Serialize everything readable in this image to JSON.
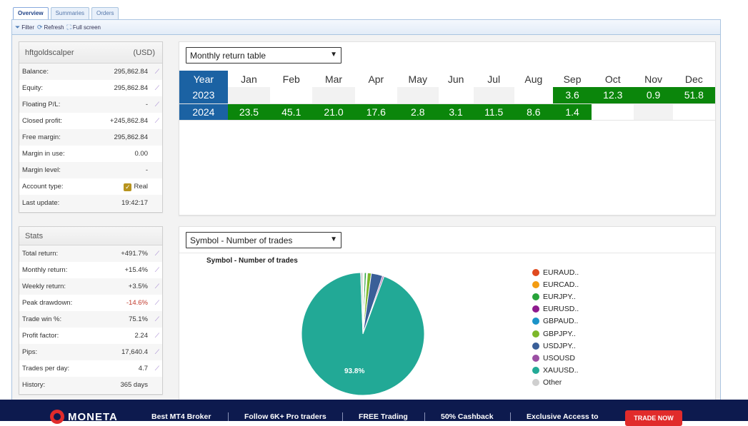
{
  "tabs": [
    "Overview",
    "Summaries",
    "Orders"
  ],
  "toolbar": {
    "filter": "Filter",
    "refresh": "Refresh",
    "fullscreen": "Full screen"
  },
  "account": {
    "name": "hftgoldscalper",
    "currency": "(USD)",
    "rows": [
      {
        "label": "Balance:",
        "value": "295,862.84",
        "chart": true
      },
      {
        "label": "Equity:",
        "value": "295,862.84",
        "chart": true
      },
      {
        "label": "Floating P/L:",
        "value": "-",
        "chart": true
      },
      {
        "label": "Closed profit:",
        "value": "+245,862.84",
        "chart": true
      },
      {
        "label": "Free margin:",
        "value": "295,862.84",
        "chart": false
      },
      {
        "label": "Margin in use:",
        "value": "0.00",
        "chart": false
      },
      {
        "label": "Margin level:",
        "value": "-",
        "chart": false
      },
      {
        "label": "Account type:",
        "value": "Real",
        "chart": false,
        "checkbox": true
      },
      {
        "label": "Last update:",
        "value": "19:42:17",
        "chart": false
      }
    ]
  },
  "stats": {
    "title": "Stats",
    "rows": [
      {
        "label": "Total return:",
        "value": "+491.7%",
        "chart": true
      },
      {
        "label": "Monthly return:",
        "value": "+15.4%",
        "chart": true
      },
      {
        "label": "Weekly return:",
        "value": "+3.5%",
        "chart": true
      },
      {
        "label": "Peak drawdown:",
        "value": "-14.6%",
        "chart": true,
        "negative": true
      },
      {
        "label": "Trade win %:",
        "value": "75.1%",
        "chart": true
      },
      {
        "label": "Profit factor:",
        "value": "2.24",
        "chart": true
      },
      {
        "label": "Pips:",
        "value": "17,640.4",
        "chart": true
      },
      {
        "label": "Trades per day:",
        "value": "4.7",
        "chart": true
      },
      {
        "label": "History:",
        "value": "365 days",
        "chart": false
      }
    ]
  },
  "monthly": {
    "select": "Monthly return table",
    "header": [
      "Year",
      "Jan",
      "Feb",
      "Mar",
      "Apr",
      "May",
      "Jun",
      "Jul",
      "Aug",
      "Sep",
      "Oct",
      "Nov",
      "Dec"
    ],
    "rows": [
      {
        "year": "2023",
        "values": [
          "",
          "",
          "",
          "",
          "",
          "",
          "",
          "",
          "3.6",
          "12.3",
          "0.9",
          "51.8"
        ]
      },
      {
        "year": "2024",
        "values": [
          "23.5",
          "45.1",
          "21.0",
          "17.6",
          "2.8",
          "3.1",
          "11.5",
          "8.6",
          "1.4",
          "",
          "",
          ""
        ]
      }
    ]
  },
  "symbol": {
    "select": "Symbol - Number of trades",
    "chart_title": "Symbol - Number of trades",
    "big_label": "93.8%"
  },
  "chart_data": {
    "type": "pie",
    "title": "Symbol - Number of trades",
    "labels": [
      "EURAUD..",
      "EURCAD..",
      "EURJPY..",
      "EURUSD..",
      "GBPAUD..",
      "GBPJPY..",
      "USDJPY..",
      "USOUSD",
      "XAUUSD..",
      "Other"
    ],
    "values": [
      0.2,
      0.2,
      0.5,
      0.1,
      0.2,
      1.0,
      3.0,
      0.4,
      93.8,
      0.6
    ],
    "colors": [
      "#e04a1f",
      "#f39c12",
      "#27a33a",
      "#8e1a8e",
      "#1b93c8",
      "#7cb72a",
      "#3a5f98",
      "#9b4fa3",
      "#22a996",
      "#cfcfcf"
    ],
    "legend": "right"
  },
  "banner": {
    "brand": "MONETA",
    "items": [
      "Best MT4 Broker",
      "Follow 6K+ Pro traders",
      "FREE Trading",
      "50% Cashback",
      "Exclusive Access to"
    ],
    "cta": "TRADE NOW"
  }
}
